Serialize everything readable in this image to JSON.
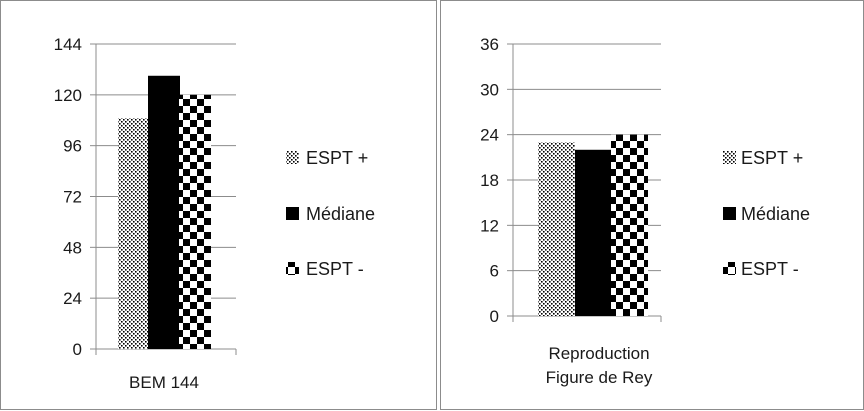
{
  "chart_data": [
    {
      "type": "bar",
      "categories": [
        "BEM 144"
      ],
      "series": [
        {
          "name": "ESPT +",
          "values": [
            109
          ]
        },
        {
          "name": "Médiane",
          "values": [
            129
          ]
        },
        {
          "name": "ESPT -",
          "values": [
            120
          ]
        }
      ],
      "yticks": [
        "0",
        "24",
        "48",
        "72",
        "96",
        "120",
        "144"
      ],
      "ylim": [
        0,
        144
      ],
      "grid": true,
      "legend_position": "right"
    },
    {
      "type": "bar",
      "categories": [
        "Reproduction Figure de Rey"
      ],
      "category_lines": [
        [
          "Reproduction",
          "Figure de Rey"
        ]
      ],
      "series": [
        {
          "name": "ESPT +",
          "values": [
            23
          ]
        },
        {
          "name": "Médiane",
          "values": [
            22
          ]
        },
        {
          "name": "ESPT -",
          "values": [
            24
          ]
        }
      ],
      "yticks": [
        "0",
        "6",
        "12",
        "18",
        "24",
        "30",
        "36"
      ],
      "ylim": [
        0,
        36
      ],
      "grid": true,
      "legend_position": "right"
    }
  ]
}
